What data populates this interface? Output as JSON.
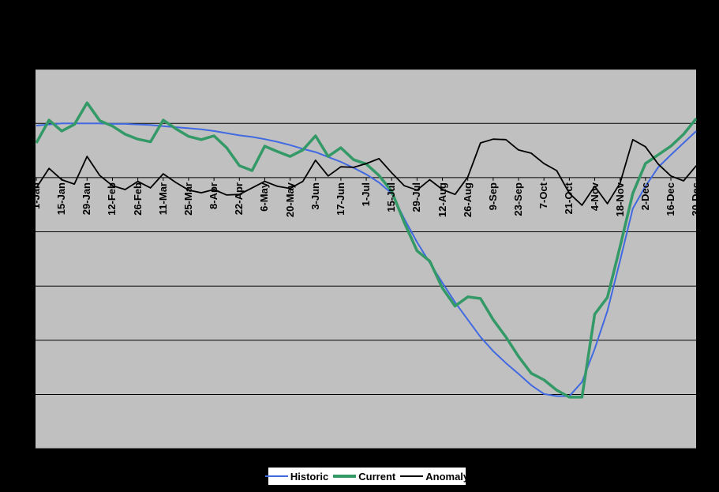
{
  "window": {
    "background": "#000000"
  },
  "chart_data": {
    "type": "line",
    "title": "",
    "xlabel": "",
    "ylabel": "",
    "x_tick_labels": [
      "1-Jan",
      "15-Jan",
      "29-Jan",
      "12-Feb",
      "26-Feb",
      "11-Mar",
      "25-Mar",
      "8-Apr",
      "22-Apr",
      "6-May",
      "20-May",
      "3-Jun",
      "17-Jun",
      "1-Jul",
      "15-Jul",
      "29-Jul",
      "12-Aug",
      "26-Aug",
      "9-Sep",
      "23-Sep",
      "7-Oct",
      "21-Oct",
      "4-Nov",
      "18-Nov",
      "2-Dec",
      "16-Dec",
      "30-Dec"
    ],
    "x_points_weekly": [
      "1-Jan",
      "8-Jan",
      "15-Jan",
      "22-Jan",
      "29-Jan",
      "5-Feb",
      "12-Feb",
      "19-Feb",
      "26-Feb",
      "5-Mar",
      "11-Mar",
      "18-Mar",
      "25-Mar",
      "1-Apr",
      "8-Apr",
      "15-Apr",
      "22-Apr",
      "29-Apr",
      "6-May",
      "13-May",
      "20-May",
      "27-May",
      "3-Jun",
      "10-Jun",
      "17-Jun",
      "24-Jun",
      "1-Jul",
      "8-Jul",
      "15-Jul",
      "22-Jul",
      "29-Jul",
      "5-Aug",
      "12-Aug",
      "19-Aug",
      "26-Aug",
      "2-Sep",
      "9-Sep",
      "16-Sep",
      "23-Sep",
      "30-Sep",
      "7-Oct",
      "14-Oct",
      "21-Oct",
      "28-Oct",
      "4-Nov",
      "11-Nov",
      "18-Nov",
      "25-Nov",
      "2-Dec",
      "9-Dec",
      "16-Dec",
      "23-Dec",
      "30-Dec"
    ],
    "y_axis": {
      "tick_labels_visible": false,
      "units": "gridline units (y-axis labels not shown in image; 0 = tick axis line)",
      "ylim": [
        -5,
        2
      ],
      "gridline_values": [
        2,
        1,
        0,
        -1,
        -2,
        -3,
        -4,
        -5
      ],
      "zero_axis_value": 0
    },
    "series": [
      {
        "name": "Historic",
        "color": "#4169E1",
        "stroke_width": 2,
        "values": [
          0.96,
          0.98,
          1.0,
          1.0,
          1.0,
          1.0,
          0.99,
          0.99,
          0.98,
          0.97,
          0.95,
          0.93,
          0.91,
          0.89,
          0.86,
          0.82,
          0.78,
          0.75,
          0.71,
          0.66,
          0.6,
          0.53,
          0.47,
          0.38,
          0.29,
          0.18,
          0.06,
          -0.09,
          -0.29,
          -0.76,
          -1.19,
          -1.57,
          -1.94,
          -2.3,
          -2.62,
          -2.94,
          -3.2,
          -3.42,
          -3.62,
          -3.83,
          -3.99,
          -4.03,
          -4.03,
          -3.77,
          -3.16,
          -2.46,
          -1.53,
          -0.57,
          -0.16,
          0.19,
          0.42,
          0.64,
          0.86
        ]
      },
      {
        "name": "Current",
        "color": "#339966",
        "stroke_width": 3.5,
        "values": [
          0.64,
          1.06,
          0.86,
          0.98,
          1.38,
          1.05,
          0.95,
          0.8,
          0.71,
          0.66,
          1.06,
          0.9,
          0.76,
          0.7,
          0.77,
          0.55,
          0.22,
          0.13,
          0.58,
          0.48,
          0.39,
          0.51,
          0.77,
          0.39,
          0.55,
          0.33,
          0.25,
          0.04,
          -0.25,
          -0.83,
          -1.35,
          -1.54,
          -2.04,
          -2.37,
          -2.2,
          -2.23,
          -2.62,
          -2.94,
          -3.3,
          -3.61,
          -3.73,
          -3.92,
          -4.05,
          -4.05,
          -2.52,
          -2.21,
          -1.27,
          -0.29,
          0.26,
          0.42,
          0.58,
          0.8,
          1.09
        ]
      },
      {
        "name": "Anomaly",
        "color": "#000000",
        "stroke_width": 1.8,
        "values": [
          -0.19,
          0.17,
          -0.04,
          -0.12,
          0.39,
          0.04,
          -0.15,
          -0.22,
          -0.07,
          -0.19,
          0.07,
          -0.09,
          -0.23,
          -0.28,
          -0.22,
          -0.32,
          -0.31,
          -0.19,
          -0.07,
          -0.16,
          -0.2,
          -0.07,
          0.32,
          0.03,
          0.2,
          0.19,
          0.26,
          0.35,
          0.09,
          -0.15,
          -0.23,
          -0.04,
          -0.22,
          -0.31,
          0.01,
          0.64,
          0.71,
          0.7,
          0.51,
          0.45,
          0.26,
          0.13,
          -0.29,
          -0.51,
          -0.16,
          -0.48,
          -0.1,
          0.7,
          0.57,
          0.25,
          0.03,
          -0.06,
          0.22
        ]
      }
    ],
    "legend": {
      "position": "bottom-center",
      "entries": [
        "Historic",
        "Current",
        "Anomaly"
      ]
    },
    "plot": {
      "background": "#C0C0C0",
      "outer_background": "#000000",
      "grid_color": "#000000",
      "border_color": "#000000",
      "grid": "horizontal-only"
    }
  }
}
